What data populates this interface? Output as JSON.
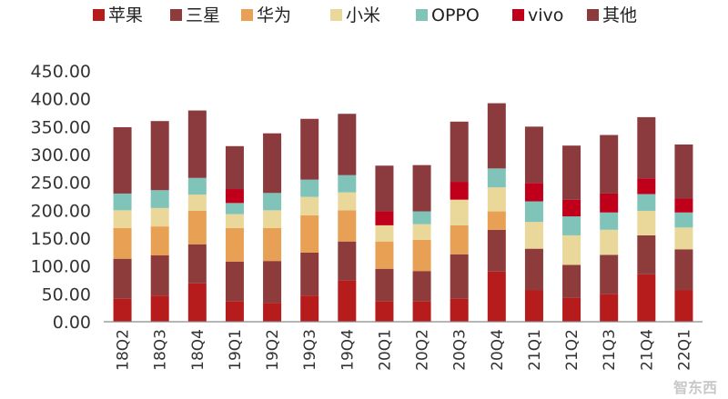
{
  "chart_data": {
    "type": "bar",
    "stacked": true,
    "title": "",
    "xlabel": "",
    "ylabel": "",
    "ylim": [
      0,
      450
    ],
    "y_ticks": [
      "0.00",
      "50.00",
      "100.00",
      "150.00",
      "200.00",
      "250.00",
      "300.00",
      "350.00",
      "400.00",
      "450.00"
    ],
    "grid": false,
    "legend_position": "top",
    "categories": [
      "18Q2",
      "18Q3",
      "18Q4",
      "19Q1",
      "19Q2",
      "19Q3",
      "19Q4",
      "20Q1",
      "20Q2",
      "20Q3",
      "20Q4",
      "21Q1",
      "21Q2",
      "21Q3",
      "21Q4",
      "22Q1"
    ],
    "series": [
      {
        "name": "苹果",
        "color": "#b71c1c",
        "values": [
          41,
          47,
          69,
          37,
          34,
          47,
          74,
          37,
          37,
          41,
          90,
          57,
          43,
          50,
          85,
          57
        ]
      },
      {
        "name": "三星",
        "color": "#8e3b3b",
        "values": [
          72,
          72,
          70,
          71,
          75,
          77,
          70,
          58,
          54,
          80,
          75,
          74,
          59,
          70,
          70,
          73
        ]
      },
      {
        "name": "华为",
        "color": "#e8a054",
        "values": [
          55,
          52,
          60,
          60,
          59,
          67,
          56,
          49,
          56,
          52,
          33,
          0,
          0,
          0,
          0,
          0
        ]
      },
      {
        "name": "小米",
        "color": "#ead79a",
        "values": [
          32,
          33,
          29,
          25,
          32,
          33,
          32,
          29,
          28,
          46,
          43,
          48,
          53,
          45,
          44,
          39
        ]
      },
      {
        "name": "OPPO",
        "color": "#7fc3b9",
        "values": [
          30,
          32,
          30,
          20,
          31,
          31,
          31,
          0,
          23,
          0,
          34,
          37,
          34,
          31,
          30,
          27
        ]
      },
      {
        "name": "vivo",
        "color": "#c0001a",
        "values": [
          0,
          0,
          0,
          25,
          0,
          0,
          0,
          25,
          0,
          32,
          0,
          33,
          30,
          34,
          28,
          25
        ]
      },
      {
        "name": "其他",
        "color": "#8b3a3e",
        "values": [
          119,
          124,
          121,
          77,
          107,
          109,
          110,
          82,
          83,
          108,
          117,
          101,
          97,
          105,
          110,
          97
        ]
      }
    ]
  },
  "watermark": "智东西"
}
